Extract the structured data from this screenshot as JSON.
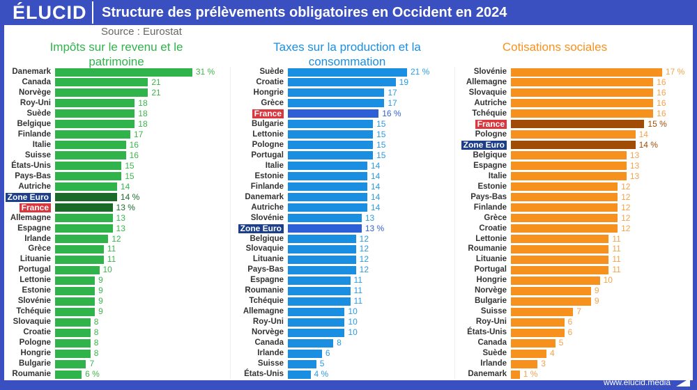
{
  "header": {
    "logo": "ÉLUCID",
    "title": "Structure des prélèvements obligatoires en Occident en 2024"
  },
  "source": "Source : Eurostat",
  "footer": {
    "url": "www.elucid.media"
  },
  "colors": {
    "header": "#3a50c0",
    "zone_euro_label": "#1d3f8a",
    "france_label": "#d9363e"
  },
  "chart_data": [
    {
      "type": "bar",
      "orientation": "horizontal",
      "title": "Impôts sur le revenu et le patrimoine",
      "unit": "%",
      "color": "#2fb34a",
      "highlight_color": "#1b6a2a",
      "value_color": "#3cb54a",
      "categories": [
        "Danemark",
        "Canada",
        "Norvège",
        "Roy-Uni",
        "Suède",
        "Belgique",
        "Finlande",
        "Italie",
        "Suisse",
        "États-Unis",
        "Pays-Bas",
        "Autriche",
        "Zone Euro",
        "France",
        "Allemagne",
        "Espagne",
        "Irlande",
        "Grèce",
        "Lituanie",
        "Portugal",
        "Lettonie",
        "Estonie",
        "Slovénie",
        "Tchéquie",
        "Slovaquie",
        "Croatie",
        "Pologne",
        "Hongrie",
        "Bulgarie",
        "Roumanie"
      ],
      "values": [
        31,
        21,
        21,
        18,
        18,
        18,
        17,
        16,
        16,
        15,
        15,
        14,
        14,
        13,
        13,
        13,
        12,
        11,
        11,
        10,
        9,
        9,
        9,
        9,
        8,
        8,
        8,
        8,
        7,
        6
      ]
    },
    {
      "type": "bar",
      "orientation": "horizontal",
      "title": "Taxes sur la production et la consommation",
      "unit": "%",
      "color": "#1a8ee0",
      "highlight_color": "#2f5fd6",
      "value_color": "#2a9ae0",
      "categories": [
        "Suède",
        "Croatie",
        "Hongrie",
        "Grèce",
        "France",
        "Bulgarie",
        "Lettonie",
        "Pologne",
        "Portugal",
        "Italie",
        "Estonie",
        "Finlande",
        "Danemark",
        "Autriche",
        "Slovénie",
        "Zone Euro",
        "Belgique",
        "Slovaquie",
        "Lituanie",
        "Pays-Bas",
        "Espagne",
        "Roumanie",
        "Tchéquie",
        "Allemagne",
        "Roy-Uni",
        "Norvège",
        "Canada",
        "Irlande",
        "Suisse",
        "États-Unis"
      ],
      "values": [
        21,
        19,
        17,
        17,
        16,
        15,
        15,
        15,
        15,
        14,
        14,
        14,
        14,
        14,
        13,
        13,
        12,
        12,
        12,
        12,
        11,
        11,
        11,
        10,
        10,
        10,
        8,
        6,
        5,
        4
      ]
    },
    {
      "type": "bar",
      "orientation": "horizontal",
      "title": "Cotisations sociales",
      "unit": "%",
      "color": "#f7911e",
      "highlight_color": "#a04c06",
      "value_color": "#f4a24a",
      "categories": [
        "Slovénie",
        "Allemagne",
        "Slovaquie",
        "Autriche",
        "Tchéquie",
        "France",
        "Pologne",
        "Zone Euro",
        "Belgique",
        "Espagne",
        "Italie",
        "Estonie",
        "Pays-Bas",
        "Finlande",
        "Grèce",
        "Croatie",
        "Lettonie",
        "Roumanie",
        "Lituanie",
        "Portugal",
        "Hongrie",
        "Norvège",
        "Bulgarie",
        "Suisse",
        "Roy-Uni",
        "États-Unis",
        "Canada",
        "Suède",
        "Irlande",
        "Danemark"
      ],
      "values": [
        17,
        16,
        16,
        16,
        16,
        15,
        14,
        14,
        13,
        13,
        13,
        12,
        12,
        12,
        12,
        12,
        11,
        11,
        11,
        11,
        10,
        9,
        9,
        7,
        6,
        6,
        5,
        4,
        3,
        1
      ]
    }
  ]
}
